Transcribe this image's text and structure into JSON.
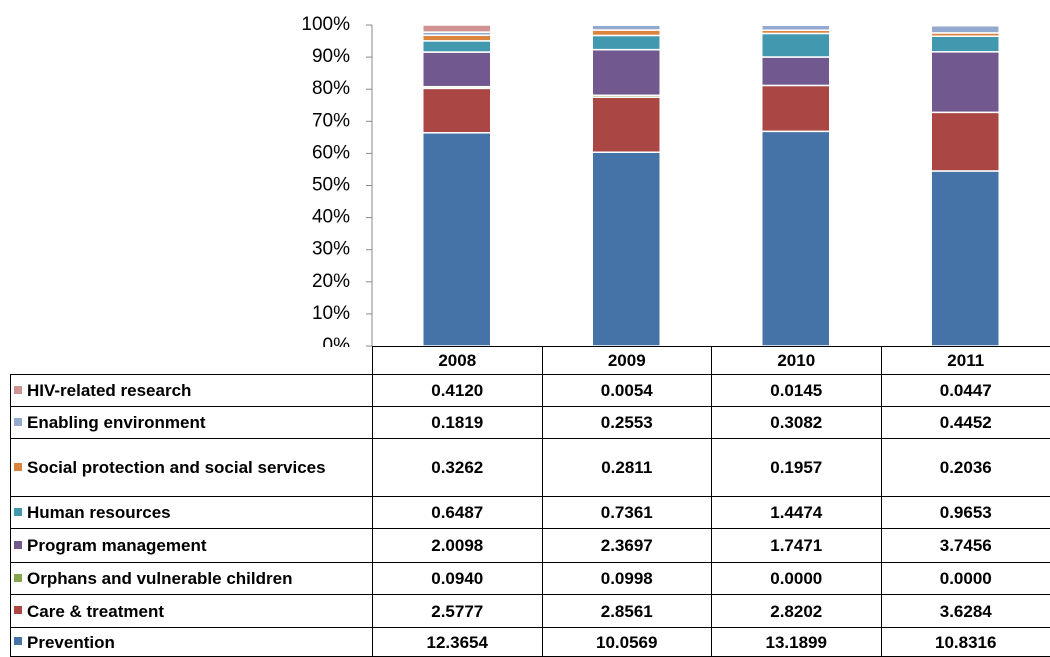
{
  "chart_data": {
    "type": "stacked_percent_bar",
    "categories": [
      "2008",
      "2009",
      "2010",
      "2011"
    ],
    "series": [
      {
        "name": "Prevention",
        "color": "#4572a7",
        "values": [
          12.3654,
          10.0569,
          13.1899,
          10.8316
        ],
        "value_labels": [
          "12.3654",
          "10.0569",
          "13.1899",
          "10.8316"
        ]
      },
      {
        "name": "Care & treatment",
        "color": "#aa4643",
        "values": [
          2.5777,
          2.8561,
          2.8202,
          3.6284
        ],
        "value_labels": [
          "2.5777",
          "2.8561",
          "2.8202",
          "3.6284"
        ]
      },
      {
        "name": "Orphans and vulnerable children",
        "color": "#89a54e",
        "values": [
          0.094,
          0.0998,
          0,
          0
        ],
        "value_labels": [
          "0.0940",
          "0.0998",
          "0.0000",
          "0.0000"
        ]
      },
      {
        "name": "Program management",
        "color": "#71588f",
        "values": [
          2.0098,
          2.3697,
          1.7471,
          3.7456
        ],
        "value_labels": [
          "2.0098",
          "2.3697",
          "1.7471",
          "3.7456"
        ]
      },
      {
        "name": "Human resources",
        "color": "#4198af",
        "values": [
          0.6487,
          0.7361,
          1.4474,
          0.9653
        ],
        "value_labels": [
          "0.6487",
          "0.7361",
          "1.4474",
          "0.9653"
        ]
      },
      {
        "name": "Social protection and social services",
        "color": "#db843d",
        "values": [
          0.3262,
          0.2811,
          0.1957,
          0.2036
        ],
        "value_labels": [
          "0.3262",
          "0.2811",
          "0.1957",
          "0.2036"
        ]
      },
      {
        "name": "Enabling environment",
        "color": "#93a9cf",
        "values": [
          0.1819,
          0.2553,
          0.3082,
          0.4452
        ],
        "value_labels": [
          "0.1819",
          "0.2553",
          "0.3082",
          "0.4452"
        ]
      },
      {
        "name": "HIV-related research",
        "color": "#d19392",
        "values": [
          0.412,
          0.0054,
          0.0145,
          0.0447
        ],
        "value_labels": [
          "0.4120",
          "0.0054",
          "0.0145",
          "0.0447"
        ]
      }
    ],
    "ylim": [
      0,
      100
    ],
    "yticks": [
      {
        "value": 0,
        "label": "0%"
      },
      {
        "value": 10,
        "label": "10%"
      },
      {
        "value": 20,
        "label": "20%"
      },
      {
        "value": 30,
        "label": "30%"
      },
      {
        "value": 40,
        "label": "40%"
      },
      {
        "value": 50,
        "label": "50%"
      },
      {
        "value": 60,
        "label": "60%"
      },
      {
        "value": 70,
        "label": "70%"
      },
      {
        "value": 80,
        "label": "80%"
      },
      {
        "value": 90,
        "label": "90%"
      },
      {
        "value": 100,
        "label": "100%"
      }
    ]
  }
}
